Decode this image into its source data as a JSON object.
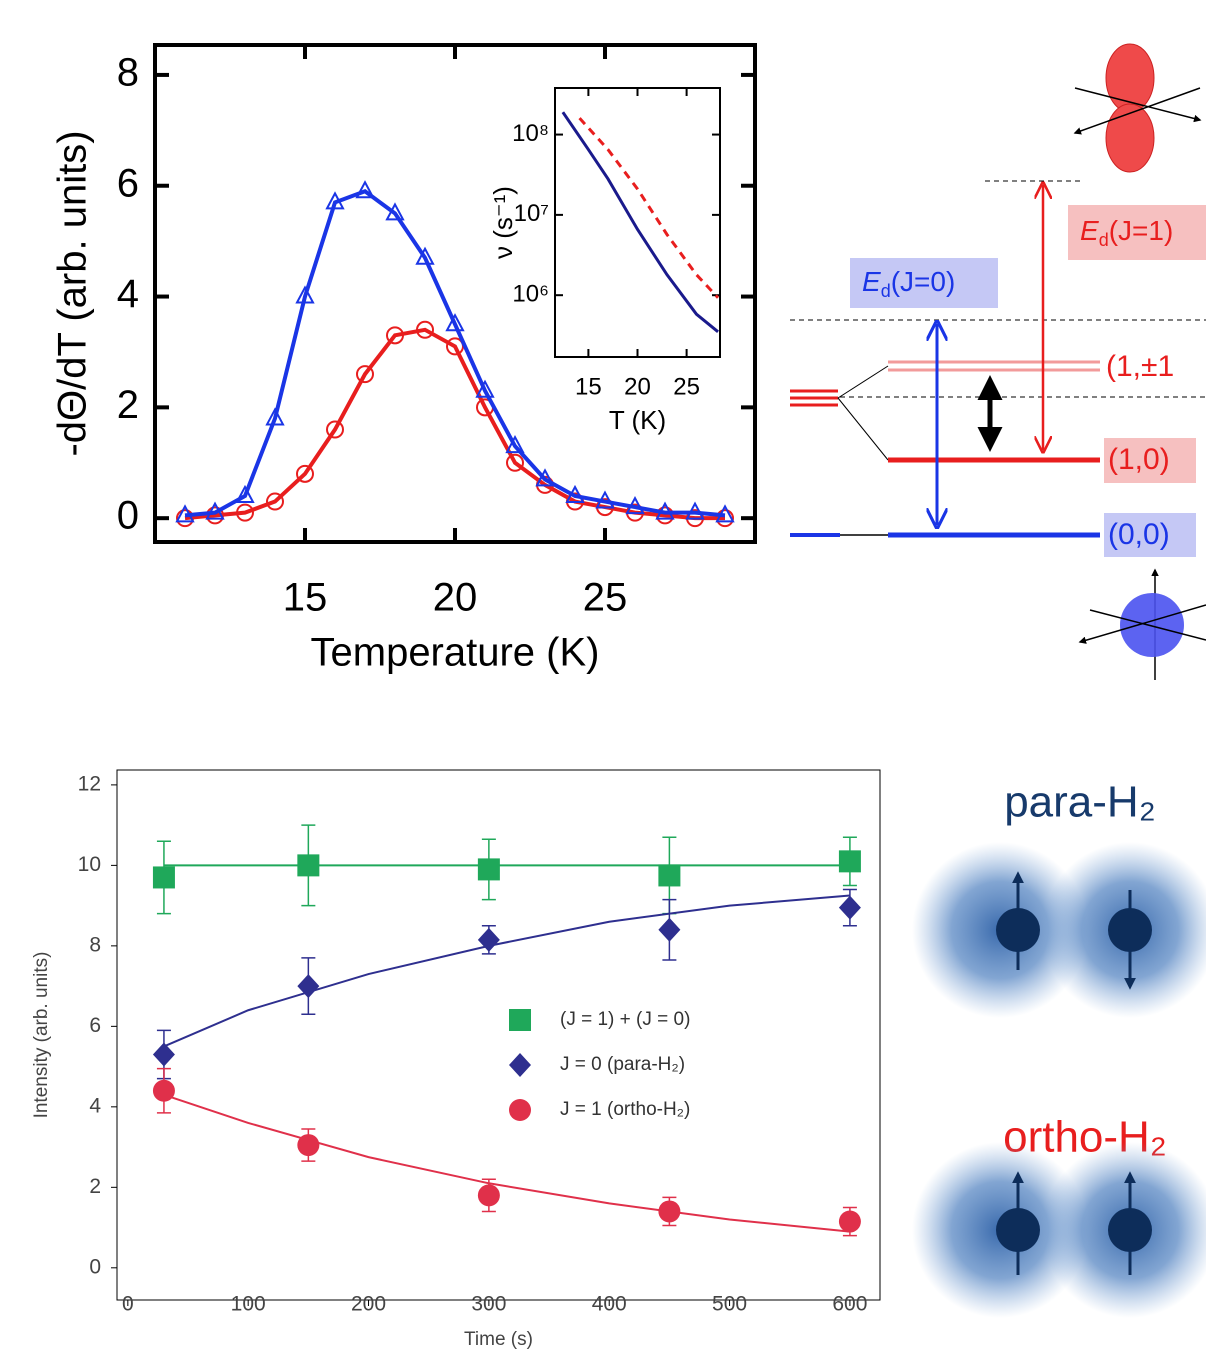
{
  "chart_data": [
    {
      "type": "scatter",
      "ylabel": "-dΘ/dT (arb. units)",
      "xlabel": "Temperature (K)",
      "xlim": [
        10,
        30
      ],
      "ylim": [
        -0.43,
        8.54
      ],
      "xticks": [
        15,
        20,
        25
      ],
      "yticks": [
        0,
        2,
        4,
        6,
        8
      ],
      "x": [
        11,
        12,
        13,
        14,
        15,
        16,
        17,
        18,
        19,
        20,
        21,
        22,
        23,
        24,
        25,
        26,
        27,
        28,
        29
      ],
      "series": [
        {
          "color": "#e81e1e",
          "marker": "circle",
          "line": true,
          "values": [
            0,
            0.05,
            0.1,
            0.3,
            0.8,
            1.6,
            2.6,
            3.3,
            3.4,
            3.1,
            2.0,
            1.0,
            0.6,
            0.3,
            0.2,
            0.1,
            0.05,
            0,
            0
          ]
        },
        {
          "color": "#1a35e6",
          "marker": "triangle",
          "line": true,
          "values": [
            0.05,
            0.1,
            0.4,
            1.8,
            4.0,
            5.7,
            5.9,
            5.5,
            4.7,
            3.5,
            2.3,
            1.3,
            0.7,
            0.4,
            0.3,
            0.2,
            0.1,
            0.1,
            0.05
          ]
        }
      ]
    },
    {
      "type": "line",
      "ylabel": "ν (s⁻¹)",
      "xlabel": "T (K)",
      "log_y": true,
      "xlim": [
        11.6,
        28.4
      ],
      "ylim": [
        170000,
        380000000
      ],
      "xticks": [
        15,
        20,
        25
      ],
      "yticks": [
        {
          "value": 1000000,
          "label": "10⁶"
        },
        {
          "value": 10000000,
          "label": "10⁷"
        },
        {
          "value": 100000000,
          "label": "10⁸"
        }
      ],
      "series": [
        {
          "color": "#1a1a8c",
          "dash": false,
          "x": [
            12.4,
            15,
            17,
            20,
            23,
            26,
            28.2
          ],
          "values": [
            190000000,
            65000000,
            28000000,
            6600000,
            1800000,
            580000,
            350000
          ]
        },
        {
          "color": "#e81e1e",
          "dash": true,
          "x": [
            14.1,
            17,
            20,
            23,
            26,
            28.2
          ],
          "values": [
            160000000,
            65000000,
            21000000,
            5700000,
            1800000,
            930000
          ]
        }
      ]
    },
    {
      "type": "scatter",
      "ylabel": "Intensity (arb. units)",
      "xlabel": "Time (s)",
      "xlim": [
        -9,
        625
      ],
      "ylim": [
        -0.8,
        12.37
      ],
      "xticks": [
        0,
        100,
        200,
        300,
        400,
        500,
        600
      ],
      "yticks": [
        0,
        2,
        4,
        6,
        8,
        10,
        12
      ],
      "legend": "right",
      "x": [
        30,
        150,
        300,
        450,
        600
      ],
      "fit_x": [
        30,
        100,
        200,
        300,
        400,
        500,
        600
      ],
      "series": [
        {
          "name": "(J = 1) + (J = 0)",
          "color": "#1fa85a",
          "marker": "square",
          "values": [
            9.7,
            10.0,
            9.9,
            9.75,
            10.1
          ],
          "errors": [
            0.9,
            1.0,
            0.75,
            0.95,
            0.6
          ],
          "fit": [
            10,
            10,
            10,
            10,
            10,
            10,
            10
          ]
        },
        {
          "name": "J = 0 (para-H₂)",
          "color": "#2e2f8f",
          "marker": "diamond",
          "values": [
            5.3,
            7.0,
            8.15,
            8.4,
            8.95
          ],
          "errors": [
            0.6,
            0.7,
            0.35,
            0.75,
            0.45
          ],
          "fit": [
            5.5,
            6.4,
            7.3,
            8.0,
            8.6,
            9.0,
            9.25
          ]
        },
        {
          "name": "J = 1 (ortho-H₂)",
          "color": "#e0304a",
          "marker": "circle",
          "values": [
            4.4,
            3.05,
            1.8,
            1.4,
            1.15
          ],
          "errors": [
            0.55,
            0.4,
            0.4,
            0.35,
            0.35
          ],
          "fit": [
            4.3,
            3.6,
            2.75,
            2.1,
            1.6,
            1.2,
            0.9
          ]
        }
      ]
    }
  ],
  "diagram": {
    "ed_j1": {
      "symbol": "E",
      "sub": "d",
      "arg": "(J=1)"
    },
    "ed_j0": {
      "symbol": "E",
      "sub": "d",
      "arg": "(J=0)"
    },
    "level_1pm1": "(1,±1",
    "level_10": "(1,0)",
    "level_00": "(0,0)"
  },
  "molecules": {
    "para": "para-H₂",
    "ortho": "ortho-H₂"
  }
}
